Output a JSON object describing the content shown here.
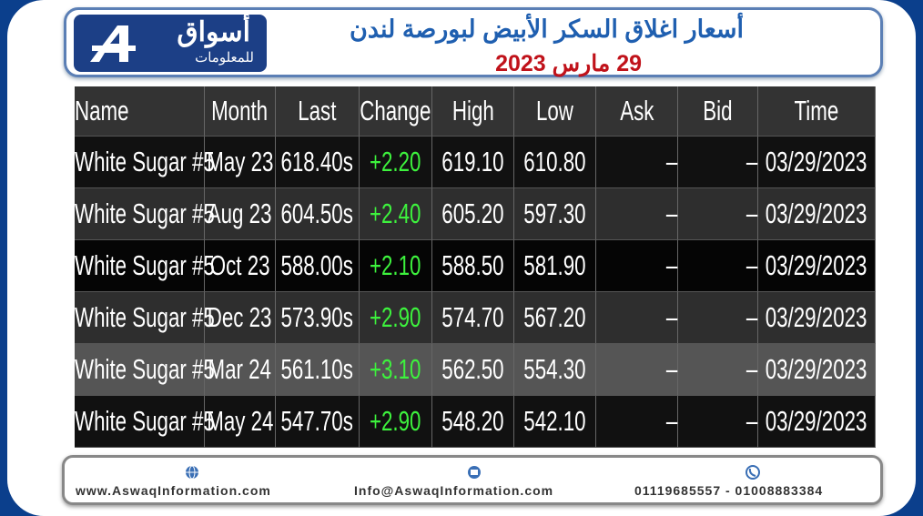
{
  "header": {
    "logo": {
      "name": "أسواق",
      "subtitle": "للمعلومات"
    },
    "title": "أسعار اغلاق السكر الأبيض لبورصة لندن",
    "date": "29 مارس 2023"
  },
  "table": {
    "columns": [
      "Name",
      "Month",
      "Last",
      "Change",
      "High",
      "Low",
      "Ask",
      "Bid",
      "Time"
    ],
    "rows": [
      [
        "White Sugar #5",
        "May 23",
        "618.40s",
        "+2.20",
        "619.10",
        "610.80",
        "–",
        "–",
        "03/29/2023"
      ],
      [
        "White Sugar #5",
        "Aug 23",
        "604.50s",
        "+2.40",
        "605.20",
        "597.30",
        "–",
        "–",
        "03/29/2023"
      ],
      [
        "White Sugar #5",
        "Oct 23",
        "588.00s",
        "+2.10",
        "588.50",
        "581.90",
        "–",
        "–",
        "03/29/2023"
      ],
      [
        "White Sugar #5",
        "Dec 23",
        "573.90s",
        "+2.90",
        "574.70",
        "567.20",
        "–",
        "–",
        "03/29/2023"
      ],
      [
        "White Sugar #5",
        "Mar 24",
        "561.10s",
        "+3.10",
        "562.50",
        "554.30",
        "–",
        "–",
        "03/29/2023"
      ],
      [
        "White Sugar #5",
        "May 24",
        "547.70s",
        "+2.90",
        "548.20",
        "542.10",
        "–",
        "–",
        "03/29/2023"
      ]
    ]
  },
  "footer": {
    "website": "www.AswaqInformation.com",
    "email": "Info@AswaqInformation.com",
    "phone": "01119685557 - 01008883384"
  }
}
